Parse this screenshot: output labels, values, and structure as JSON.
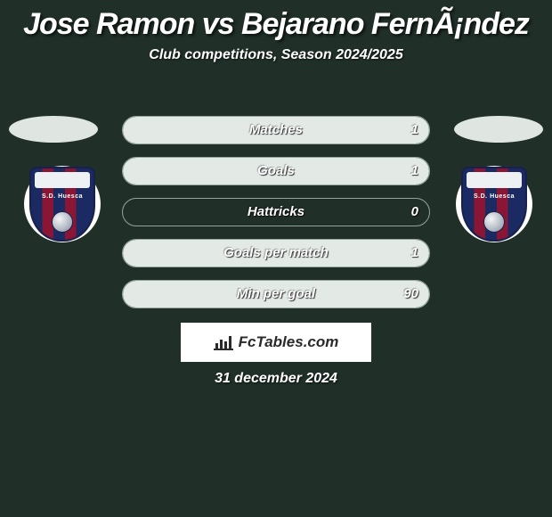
{
  "title": "Jose Ramon vs Bejarano FernÃ¡ndez",
  "subtitle": "Club competitions, Season 2024/2025",
  "date": "31 december 2024",
  "brand": "FcTables.com",
  "colors": {
    "background": "#203028",
    "row_border": "#93a59b",
    "row_fill": "#e3e9e5",
    "text": "#ffffff",
    "brand_bg": "#ffffff",
    "brand_fg": "#2a2a2a"
  },
  "crest": {
    "name": "S.D. Huesca",
    "shield_colors": [
      "#1c2a64",
      "#8a1535"
    ],
    "top_band": "#eef1f4"
  },
  "stats": [
    {
      "label": "Matches",
      "value_right": "1",
      "fill_right_pct": 100
    },
    {
      "label": "Goals",
      "value_right": "1",
      "fill_right_pct": 100
    },
    {
      "label": "Hattricks",
      "value_right": "0",
      "fill_right_pct": 0
    },
    {
      "label": "Goals per match",
      "value_right": "1",
      "fill_right_pct": 100
    },
    {
      "label": "Min per goal",
      "value_right": "90",
      "fill_right_pct": 100
    }
  ]
}
